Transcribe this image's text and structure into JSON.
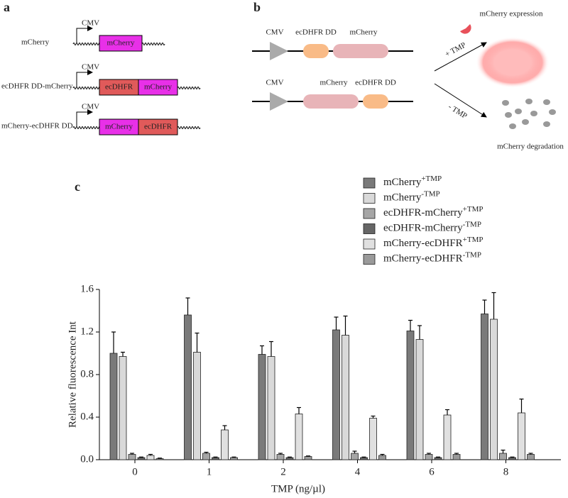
{
  "panel_a": {
    "label": "a",
    "promoter": "CMV",
    "constructs": [
      {
        "name": "mCherry",
        "parts": [
          "mCherry"
        ]
      },
      {
        "name": "ecDHFR DD-mCherry",
        "parts": [
          "ecDHFR",
          "mCherry"
        ]
      },
      {
        "name": "mCherry-ecDHFR DD",
        "parts": [
          "mCherry",
          "ecDHFR"
        ]
      }
    ]
  },
  "panel_b": {
    "label": "b",
    "promoter": "CMV",
    "constructs": [
      {
        "parts": [
          "ecDHFR DD",
          "mCherry"
        ]
      },
      {
        "parts": [
          "mCherry",
          "ecDHFR DD"
        ]
      }
    ],
    "plus": "+ TMP",
    "minus": "- TMP",
    "expression": "mCherry expression",
    "degradation": "mCherry degradation"
  },
  "panel_c": {
    "label": "c"
  },
  "chart_data": {
    "type": "bar",
    "xlabel": "TMP (ng/µl)",
    "ylabel": "Relative fluorescence Int",
    "categories": [
      "0",
      "1",
      "2",
      "4",
      "6",
      "8"
    ],
    "ylim": [
      0,
      1.6
    ],
    "yticks": [
      {
        "value": 0,
        "label": "0.0"
      },
      0.4,
      0.8,
      1.2,
      1.6
    ],
    "series": [
      {
        "name": "mCherry",
        "sup": "+TMP",
        "color": "#7a7a7a",
        "values": [
          1.0,
          1.36,
          0.99,
          1.22,
          1.21,
          1.37
        ],
        "errors": [
          0.2,
          0.16,
          0.08,
          0.12,
          0.1,
          0.13
        ]
      },
      {
        "name": "mCherry",
        "sup": "-TMP",
        "color": "#d9d9d9",
        "values": [
          0.97,
          1.01,
          0.97,
          1.17,
          1.13,
          1.32
        ],
        "errors": [
          0.04,
          0.18,
          0.14,
          0.18,
          0.13,
          0.25
        ]
      },
      {
        "name": "ecDHFR-mCherry",
        "sup": "+TMP",
        "color": "#a6a6a6",
        "values": [
          0.05,
          0.06,
          0.05,
          0.06,
          0.05,
          0.06
        ],
        "errors": [
          0.01,
          0.01,
          0.01,
          0.02,
          0.01,
          0.03
        ]
      },
      {
        "name": "ecDHFR-mCherry",
        "sup": "-TMP",
        "color": "#666666",
        "values": [
          0.02,
          0.02,
          0.02,
          0.02,
          0.02,
          0.02
        ],
        "errors": [
          0.005,
          0.005,
          0.005,
          0.005,
          0.005,
          0.005
        ]
      },
      {
        "name": "mCherry-ecDHFR",
        "sup": "+TMP",
        "color": "#e0e0e0",
        "values": [
          0.04,
          0.28,
          0.43,
          0.39,
          0.42,
          0.44
        ],
        "errors": [
          0.01,
          0.04,
          0.06,
          0.02,
          0.05,
          0.13
        ]
      },
      {
        "name": "mCherry-ecDHFR",
        "sup": "-TMP",
        "color": "#9a9a9a",
        "values": [
          0.01,
          0.02,
          0.03,
          0.04,
          0.05,
          0.05
        ],
        "errors": [
          0.005,
          0.005,
          0.005,
          0.01,
          0.01,
          0.01
        ]
      }
    ]
  }
}
